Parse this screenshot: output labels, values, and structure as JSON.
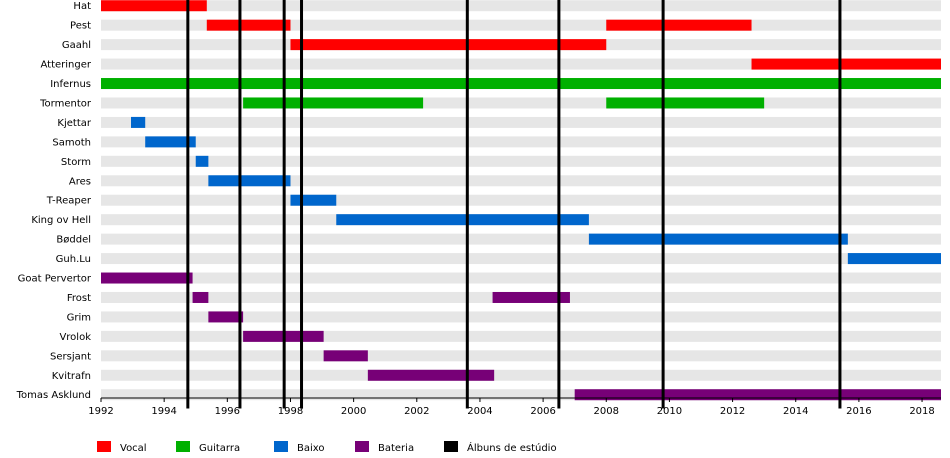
{
  "chart_data": {
    "type": "timeline",
    "title": "",
    "xlabel": "",
    "ylabel": "",
    "xlim": [
      1992.0,
      2018.6
    ],
    "x_ticks": [
      1992,
      1994,
      1996,
      1998,
      2000,
      2002,
      2004,
      2006,
      2008,
      2010,
      2012,
      2014,
      2016,
      2018
    ],
    "grid": true,
    "legend_position": "bottom",
    "colors": {
      "Vocal": "#ff0000",
      "Guitarra": "#00b000",
      "Baixo": "#0066cc",
      "Bateria": "#770077",
      "Álbuns de estúdio": "#000000"
    },
    "members": [
      {
        "name": "Hat",
        "spans": [
          {
            "role": "Vocal",
            "start": 1992.0,
            "end": 1995.35
          }
        ]
      },
      {
        "name": "Pest",
        "spans": [
          {
            "role": "Vocal",
            "start": 1995.35,
            "end": 1998.0
          },
          {
            "role": "Vocal",
            "start": 2008.0,
            "end": 2012.6
          }
        ]
      },
      {
        "name": "Gaahl",
        "spans": [
          {
            "role": "Vocal",
            "start": 1998.0,
            "end": 2008.0
          }
        ]
      },
      {
        "name": "Atteringer",
        "spans": [
          {
            "role": "Vocal",
            "start": 2012.6,
            "end": 2018.6
          }
        ]
      },
      {
        "name": "Infernus",
        "spans": [
          {
            "role": "Guitarra",
            "start": 1992.0,
            "end": 2018.6
          }
        ]
      },
      {
        "name": "Tormentor",
        "spans": [
          {
            "role": "Guitarra",
            "start": 1996.5,
            "end": 2002.2
          },
          {
            "role": "Guitarra",
            "start": 2008.0,
            "end": 2013.0
          }
        ]
      },
      {
        "name": "Kjettar",
        "spans": [
          {
            "role": "Baixo",
            "start": 1992.95,
            "end": 1993.4
          }
        ]
      },
      {
        "name": "Samoth",
        "spans": [
          {
            "role": "Baixo",
            "start": 1993.4,
            "end": 1995.0
          }
        ]
      },
      {
        "name": "Storm",
        "spans": [
          {
            "role": "Baixo",
            "start": 1995.0,
            "end": 1995.4
          }
        ]
      },
      {
        "name": "Ares",
        "spans": [
          {
            "role": "Baixo",
            "start": 1995.4,
            "end": 1998.0
          }
        ]
      },
      {
        "name": "T-Reaper",
        "spans": [
          {
            "role": "Baixo",
            "start": 1998.0,
            "end": 1999.45
          }
        ]
      },
      {
        "name": "King ov Hell",
        "spans": [
          {
            "role": "Baixo",
            "start": 1999.45,
            "end": 2007.45
          }
        ]
      },
      {
        "name": "Bøddel",
        "spans": [
          {
            "role": "Baixo",
            "start": 2007.45,
            "end": 2015.65
          }
        ]
      },
      {
        "name": "Guh.Lu",
        "spans": [
          {
            "role": "Baixo",
            "start": 2015.65,
            "end": 2018.6
          }
        ]
      },
      {
        "name": "Goat Pervertor",
        "spans": [
          {
            "role": "Bateria",
            "start": 1992.0,
            "end": 1994.9
          }
        ]
      },
      {
        "name": "Frost",
        "spans": [
          {
            "role": "Bateria",
            "start": 1994.9,
            "end": 1995.4
          },
          {
            "role": "Bateria",
            "start": 2004.4,
            "end": 2006.85
          }
        ]
      },
      {
        "name": "Grim",
        "spans": [
          {
            "role": "Bateria",
            "start": 1995.4,
            "end": 1996.5
          }
        ]
      },
      {
        "name": "Vrolok",
        "spans": [
          {
            "role": "Bateria",
            "start": 1996.5,
            "end": 1999.05
          }
        ]
      },
      {
        "name": "Sersjant",
        "spans": [
          {
            "role": "Bateria",
            "start": 1999.05,
            "end": 2000.45
          }
        ]
      },
      {
        "name": "Kvitrafn",
        "spans": [
          {
            "role": "Bateria",
            "start": 2000.45,
            "end": 2004.45
          }
        ]
      },
      {
        "name": "Tomas Asklund",
        "spans": [
          {
            "role": "Bateria",
            "start": 2007.0,
            "end": 2018.6
          }
        ]
      }
    ],
    "album_lines": [
      1994.75,
      1996.4,
      1997.8,
      1998.35,
      2003.6,
      2006.5,
      2009.8,
      2015.4
    ],
    "legend": [
      "Vocal",
      "Guitarra",
      "Baixo",
      "Bateria",
      "Álbuns de estúdio"
    ]
  }
}
